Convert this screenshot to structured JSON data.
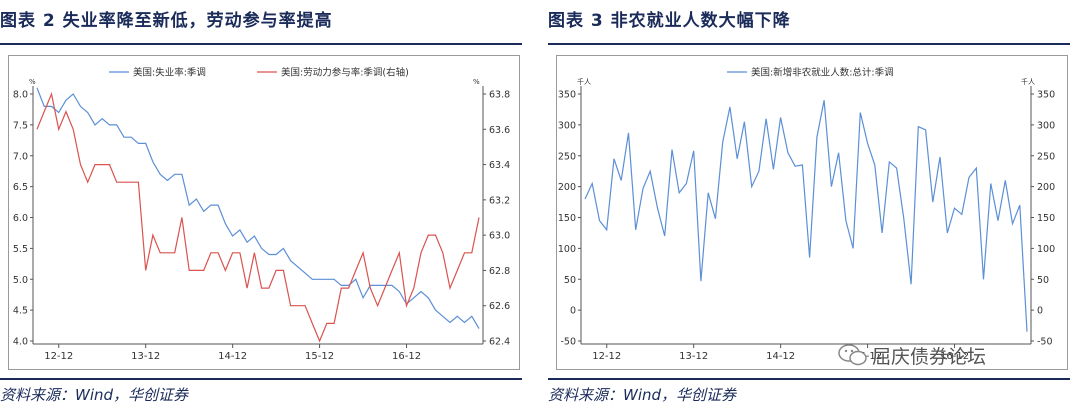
{
  "left_panel": {
    "title": "图表  2  失业率降至新低，劳动参与率提高",
    "source": "资料来源：Wind，华创证券"
  },
  "right_panel": {
    "title": "图表  3  非农就业人数大幅下降",
    "source": "资料来源：Wind，华创证券"
  },
  "watermark": "屈庆债券论坛",
  "colors": {
    "blue": "#5b8fd6",
    "red": "#d9534f",
    "navy": "#1a2b5a"
  },
  "chart_data": [
    {
      "type": "line",
      "x_ticks": [
        "12-12",
        "13-12",
        "14-12",
        "15-12",
        "16-12"
      ],
      "x_tick_index": [
        3,
        15,
        27,
        39,
        51
      ],
      "y_left_unit": "%",
      "y_right_unit": "%",
      "ylim_left": [
        4.0,
        8.0
      ],
      "yticks_left": [
        "4.0",
        "4.5",
        "5.0",
        "5.5",
        "6.0",
        "6.5",
        "7.0",
        "7.5",
        "8.0"
      ],
      "ylim_right": [
        62.4,
        63.8
      ],
      "yticks_right": [
        "62.4",
        "62.6",
        "62.8",
        "63.0",
        "63.2",
        "63.4",
        "63.6",
        "63.8"
      ],
      "grid": false,
      "legend_position": "top",
      "series": [
        {
          "name": "美国:失业率:季调",
          "axis": "left",
          "color": "#5b8fd6",
          "values": [
            8.1,
            7.8,
            7.8,
            7.7,
            7.9,
            8.0,
            7.8,
            7.7,
            7.5,
            7.6,
            7.5,
            7.5,
            7.3,
            7.3,
            7.2,
            7.2,
            6.9,
            6.7,
            6.6,
            6.7,
            6.7,
            6.2,
            6.3,
            6.1,
            6.2,
            6.2,
            5.9,
            5.7,
            5.8,
            5.6,
            5.7,
            5.5,
            5.4,
            5.4,
            5.5,
            5.3,
            5.2,
            5.1,
            5.0,
            5.0,
            5.0,
            5.0,
            4.9,
            4.9,
            5.0,
            4.7,
            4.9,
            4.9,
            4.9,
            4.9,
            4.8,
            4.6,
            4.7,
            4.8,
            4.7,
            4.5,
            4.4,
            4.3,
            4.4,
            4.3,
            4.4,
            4.2
          ]
        },
        {
          "name": "美国:劳动力参与率:季调(右轴)",
          "axis": "right",
          "color": "#d9534f",
          "values": [
            63.6,
            63.7,
            63.8,
            63.6,
            63.7,
            63.6,
            63.4,
            63.3,
            63.4,
            63.4,
            63.4,
            63.3,
            63.3,
            63.3,
            63.3,
            62.8,
            63.0,
            62.9,
            62.9,
            62.9,
            63.1,
            62.8,
            62.8,
            62.8,
            62.9,
            62.9,
            62.8,
            62.9,
            62.9,
            62.7,
            62.9,
            62.7,
            62.7,
            62.8,
            62.8,
            62.6,
            62.6,
            62.6,
            62.5,
            62.4,
            62.5,
            62.5,
            62.7,
            62.7,
            62.8,
            62.9,
            62.7,
            62.6,
            62.7,
            62.8,
            62.9,
            62.6,
            62.7,
            62.9,
            63.0,
            63.0,
            62.9,
            62.7,
            62.8,
            62.9,
            62.9,
            63.1
          ]
        }
      ]
    },
    {
      "type": "line",
      "x_ticks": [
        "12-12",
        "13-12",
        "14-12",
        "15-12",
        "16-12"
      ],
      "x_tick_index": [
        3,
        15,
        27,
        39,
        51
      ],
      "y_left_unit": "千人",
      "y_right_unit": "千人",
      "ylim": [
        -50,
        350
      ],
      "yticks": [
        "-50",
        "0",
        "50",
        "100",
        "150",
        "200",
        "250",
        "300",
        "350"
      ],
      "grid": false,
      "legend_position": "top",
      "series": [
        {
          "name": "美国:新增非农就业人数:总计:季调",
          "axis": "left",
          "color": "#5b8fd6",
          "values": [
            180,
            205,
            145,
            130,
            245,
            210,
            287,
            130,
            197,
            225,
            165,
            120,
            260,
            190,
            205,
            258,
            47,
            190,
            148,
            272,
            329,
            245,
            305,
            200,
            225,
            310,
            228,
            312,
            255,
            233,
            235,
            85,
            280,
            340,
            200,
            255,
            145,
            100,
            320,
            270,
            235,
            125,
            240,
            230,
            148,
            42,
            297,
            292,
            175,
            248,
            125,
            165,
            155,
            215,
            230,
            50,
            205,
            145,
            210,
            140,
            170,
            -35
          ]
        }
      ]
    }
  ]
}
